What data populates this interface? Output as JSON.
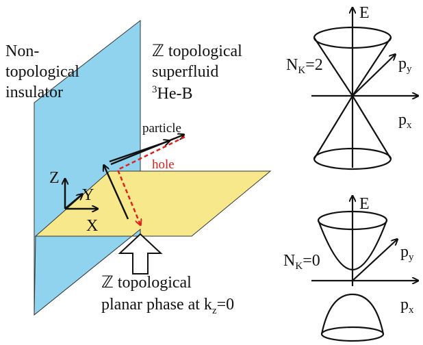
{
  "left_label": {
    "lines": [
      "Non-",
      "topological",
      "insulator"
    ]
  },
  "right_label": {
    "lines": [
      "ℤ topological",
      "superfluid"
    ],
    "isotope": {
      "sup": "3",
      "text": "He-B"
    }
  },
  "vectors": {
    "particle": "particle",
    "hole": "hole"
  },
  "axes": {
    "z": "Z",
    "y": "Y",
    "x": "X"
  },
  "bottom_label": {
    "line1": "ℤ topological",
    "line2": {
      "text": "planar phase at k",
      "sub": "z",
      "rest": "=0"
    }
  },
  "cones": [
    {
      "index": {
        "symbol": "N",
        "sub": "K",
        "value": "=2"
      },
      "energy": "E",
      "py": {
        "text": "p",
        "sub": "y"
      },
      "px": {
        "text": "p",
        "sub": "x"
      }
    },
    {
      "index": {
        "symbol": "N",
        "sub": "K",
        "value": "=0"
      },
      "energy": "E",
      "py": {
        "text": "p",
        "sub": "y"
      },
      "px": {
        "text": "p",
        "sub": "x"
      }
    }
  ]
}
